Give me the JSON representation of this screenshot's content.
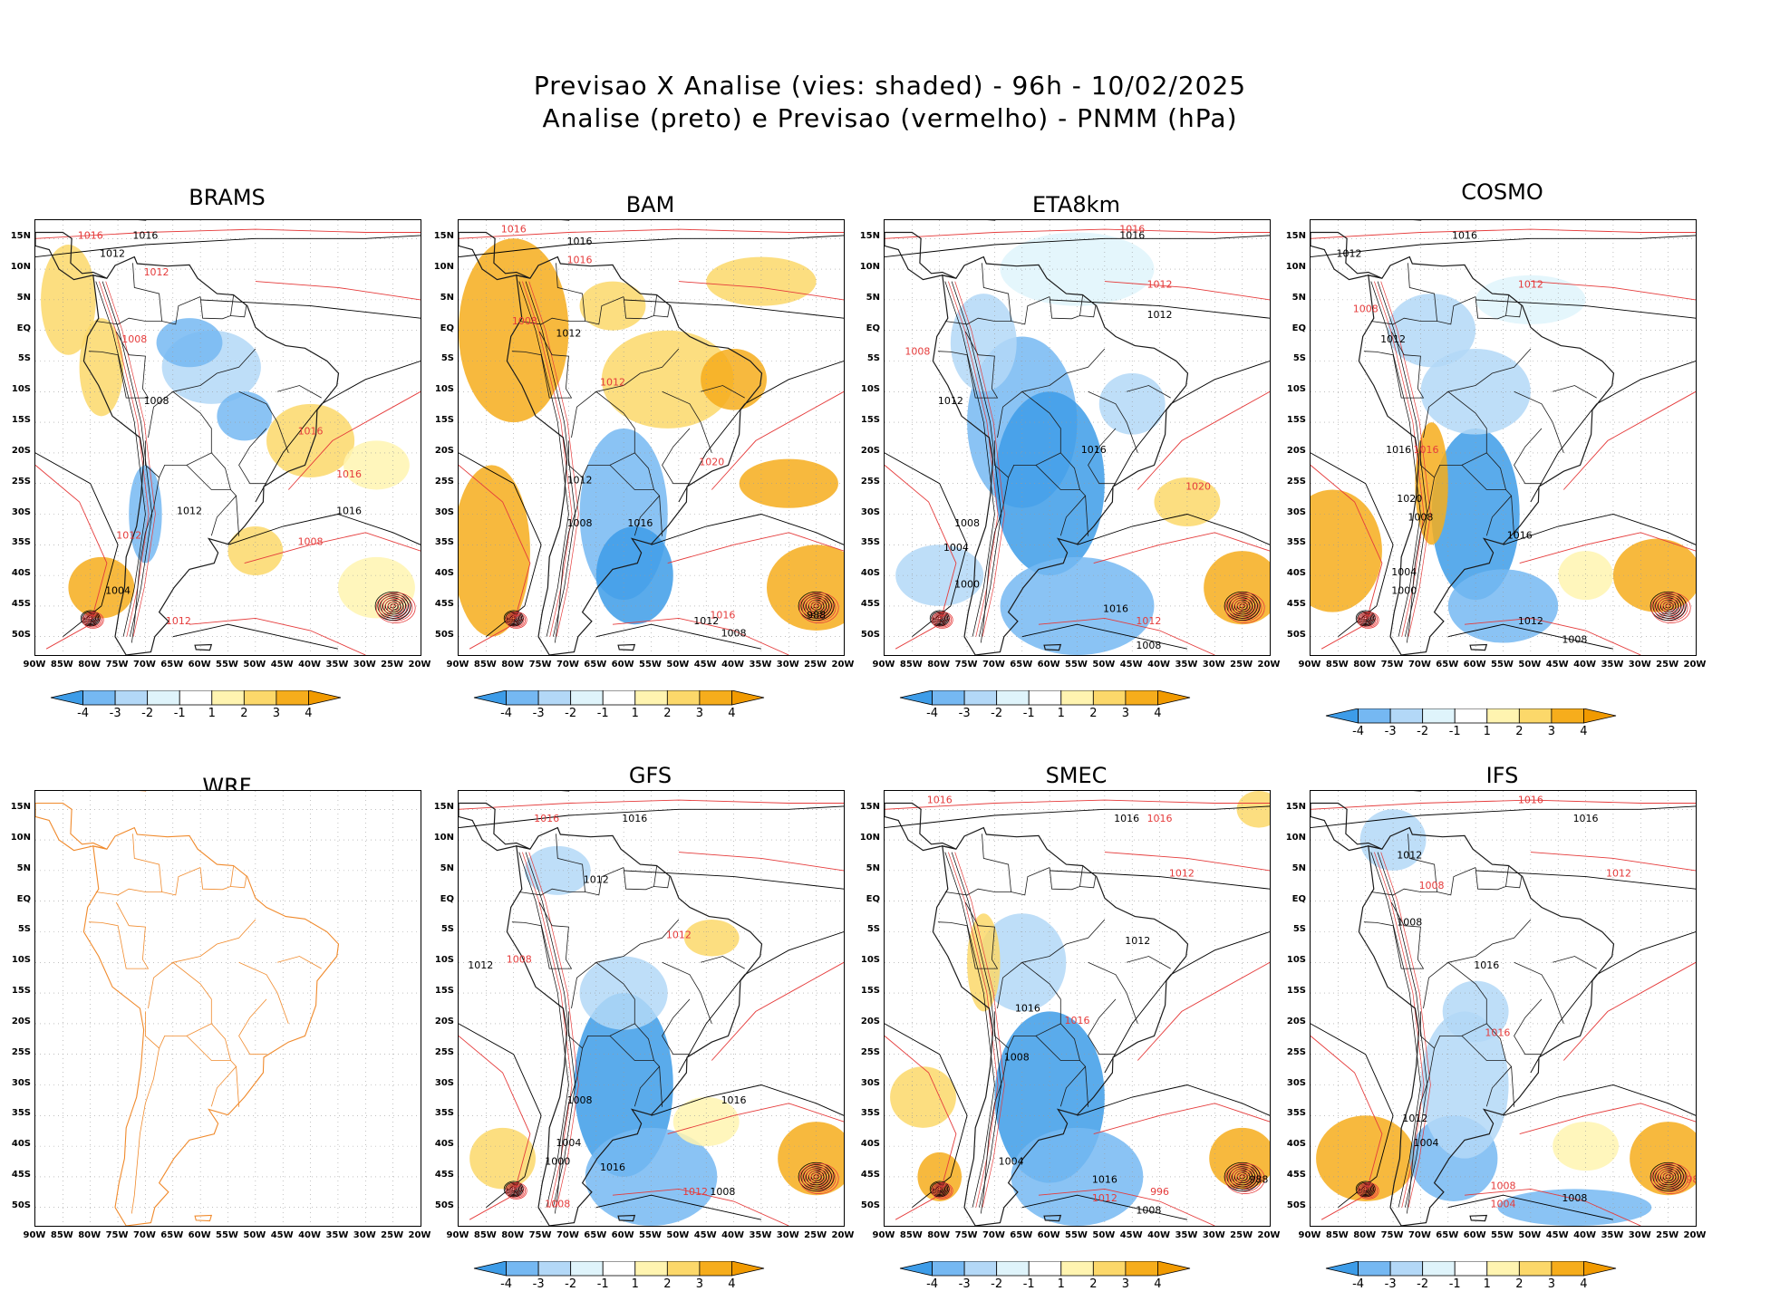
{
  "title": {
    "line1": "Previsao X Analise (vies: shaded) - 96h - 10/02/2025",
    "line2": "Analise (preto) e Previsao (vermelho) - PNMM (hPa)"
  },
  "lat_labels": [
    "15N",
    "10N",
    "5N",
    "EQ",
    "5S",
    "10S",
    "15S",
    "20S",
    "25S",
    "30S",
    "35S",
    "40S",
    "45S",
    "50S"
  ],
  "lon_labels": [
    "90W",
    "85W",
    "80W",
    "75W",
    "70W",
    "65W",
    "60W",
    "55W",
    "50W",
    "45W",
    "40W",
    "35W",
    "30W",
    "25W",
    "20W"
  ],
  "colorbar": {
    "labels": [
      "-4",
      "-3",
      "-2",
      "-1",
      "1",
      "2",
      "3",
      "4"
    ],
    "colors": [
      "#3d9ce8",
      "#75b8f2",
      "#b3d8f7",
      "#dff4fb",
      "#ffffff",
      "#fff4b0",
      "#fcd86a",
      "#f6ad1c",
      "#f19a00"
    ]
  },
  "colors": {
    "analysis_contour": "#000000",
    "forecast_contour": "#e53b3b",
    "coast_wrf": "#f08a2c",
    "coast": "#1a1a1a"
  },
  "panels": [
    {
      "name": "BRAMS",
      "labels": [
        {
          "t": "1016",
          "c": "r"
        },
        {
          "t": "1016",
          "c": "k"
        },
        {
          "t": "1012",
          "c": "k"
        },
        {
          "t": "1012",
          "c": "r"
        },
        {
          "t": "1008",
          "c": "r"
        },
        {
          "t": "1016",
          "c": "r"
        },
        {
          "t": "1016",
          "c": "k"
        },
        {
          "t": "1008",
          "c": "k"
        },
        {
          "t": "1004",
          "c": "k"
        },
        {
          "t": "1012",
          "c": "r"
        },
        {
          "t": "1012",
          "c": "k"
        },
        {
          "t": "1016",
          "c": "r"
        },
        {
          "t": "1008",
          "c": "r"
        },
        {
          "t": "1012",
          "c": "r"
        }
      ]
    },
    {
      "name": "BAM",
      "labels": [
        {
          "t": "1016",
          "c": "r"
        },
        {
          "t": "1016",
          "c": "k"
        },
        {
          "t": "1016",
          "c": "r"
        },
        {
          "t": "1012",
          "c": "k"
        },
        {
          "t": "1008",
          "c": "r"
        },
        {
          "t": "1012",
          "c": "r"
        },
        {
          "t": "1020",
          "c": "r"
        },
        {
          "t": "1016",
          "c": "k"
        },
        {
          "t": "1008",
          "c": "k"
        },
        {
          "t": "1012",
          "c": "k"
        },
        {
          "t": "1016",
          "c": "r"
        },
        {
          "t": "1012",
          "c": "k"
        },
        {
          "t": "1008",
          "c": "k"
        },
        {
          "t": "988",
          "c": "k"
        }
      ]
    },
    {
      "name": "ETA8km",
      "labels": [
        {
          "t": "1016",
          "c": "r"
        },
        {
          "t": "1016",
          "c": "k"
        },
        {
          "t": "1012",
          "c": "r"
        },
        {
          "t": "1012",
          "c": "k"
        },
        {
          "t": "1008",
          "c": "r"
        },
        {
          "t": "1012",
          "c": "k"
        },
        {
          "t": "1016",
          "c": "k"
        },
        {
          "t": "1020",
          "c": "r"
        },
        {
          "t": "1008",
          "c": "k"
        },
        {
          "t": "1004",
          "c": "k"
        },
        {
          "t": "1000",
          "c": "k"
        },
        {
          "t": "1016",
          "c": "k"
        },
        {
          "t": "1012",
          "c": "r"
        },
        {
          "t": "1008",
          "c": "k"
        }
      ]
    },
    {
      "name": "COSMO",
      "labels": [
        {
          "t": "1016",
          "c": "k"
        },
        {
          "t": "1012",
          "c": "k"
        },
        {
          "t": "1012",
          "c": "k"
        },
        {
          "t": "1012",
          "c": "r"
        },
        {
          "t": "1008",
          "c": "r"
        },
        {
          "t": "1016",
          "c": "k"
        },
        {
          "t": "1016",
          "c": "r"
        },
        {
          "t": "1020",
          "c": "k"
        },
        {
          "t": "1008",
          "c": "k"
        },
        {
          "t": "1004",
          "c": "k"
        },
        {
          "t": "1000",
          "c": "k"
        },
        {
          "t": "1016",
          "c": "k"
        },
        {
          "t": "1012",
          "c": "k"
        },
        {
          "t": "1008",
          "c": "k"
        }
      ]
    },
    {
      "name": "WRF",
      "labels": []
    },
    {
      "name": "GFS",
      "labels": [
        {
          "t": "1016",
          "c": "r"
        },
        {
          "t": "1016",
          "c": "k"
        },
        {
          "t": "1012",
          "c": "k"
        },
        {
          "t": "1012",
          "c": "r"
        },
        {
          "t": "1008",
          "c": "r"
        },
        {
          "t": "1012",
          "c": "k"
        },
        {
          "t": "1016",
          "c": "k"
        },
        {
          "t": "1008",
          "c": "k"
        },
        {
          "t": "1004",
          "c": "k"
        },
        {
          "t": "1000",
          "c": "k"
        },
        {
          "t": "1016",
          "c": "k"
        },
        {
          "t": "1012",
          "c": "r"
        },
        {
          "t": "1008",
          "c": "k"
        },
        {
          "t": "1008",
          "c": "r"
        }
      ]
    },
    {
      "name": "SMEC",
      "labels": [
        {
          "t": "1016",
          "c": "r"
        },
        {
          "t": "1016",
          "c": "k"
        },
        {
          "t": "1016",
          "c": "r"
        },
        {
          "t": "1012",
          "c": "r"
        },
        {
          "t": "1012",
          "c": "k"
        },
        {
          "t": "1016",
          "c": "k"
        },
        {
          "t": "1016",
          "c": "r"
        },
        {
          "t": "1008",
          "c": "k"
        },
        {
          "t": "1004",
          "c": "k"
        },
        {
          "t": "1016",
          "c": "k"
        },
        {
          "t": "1012",
          "c": "r"
        },
        {
          "t": "1008",
          "c": "k"
        },
        {
          "t": "996",
          "c": "r"
        },
        {
          "t": "988",
          "c": "k"
        }
      ]
    },
    {
      "name": "IFS",
      "labels": [
        {
          "t": "1016",
          "c": "r"
        },
        {
          "t": "1016",
          "c": "k"
        },
        {
          "t": "1012",
          "c": "r"
        },
        {
          "t": "1012",
          "c": "k"
        },
        {
          "t": "1008",
          "c": "r"
        },
        {
          "t": "1008",
          "c": "k"
        },
        {
          "t": "1016",
          "c": "k"
        },
        {
          "t": "1016",
          "c": "r"
        },
        {
          "t": "1004",
          "c": "k"
        },
        {
          "t": "1012",
          "c": "k"
        },
        {
          "t": "1008",
          "c": "r"
        },
        {
          "t": "1004",
          "c": "r"
        },
        {
          "t": "1008",
          "c": "k"
        },
        {
          "t": "988",
          "c": "r"
        }
      ]
    }
  ]
}
